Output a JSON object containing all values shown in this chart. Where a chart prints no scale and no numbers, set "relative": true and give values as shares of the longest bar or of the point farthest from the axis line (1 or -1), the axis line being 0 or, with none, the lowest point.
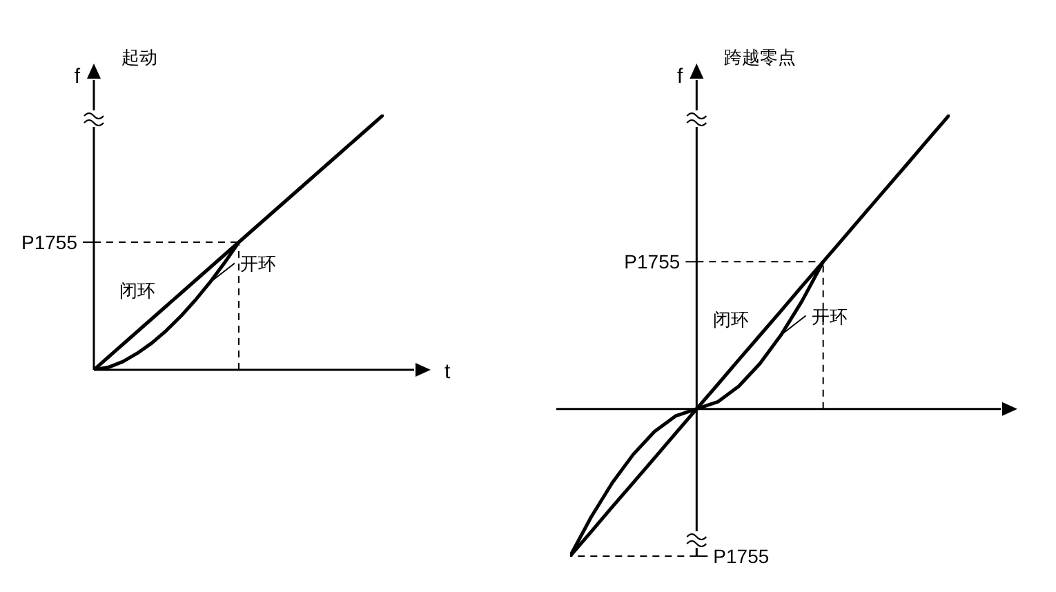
{
  "chart_data": [
    {
      "type": "line",
      "title": "起动",
      "xlabel": "t",
      "ylabel": "f",
      "relative": true,
      "marker": "none",
      "line_style": "solid",
      "categories": [
        null,
        null,
        null,
        null,
        null,
        null,
        null,
        null,
        null,
        null,
        null,
        null,
        null,
        null,
        null,
        null,
        null,
        null,
        null,
        null,
        null
      ],
      "series": [
        {
          "name": "闭环",
          "color": "#000000",
          "values": [
            0,
            0.05,
            0.1,
            0.15,
            0.2,
            0.25,
            0.3,
            0.35,
            0.4,
            0.45,
            0.5,
            0.55,
            0.6,
            0.65,
            0.7,
            0.75,
            0.8,
            0.85,
            0.9,
            0.95,
            1
          ]
        },
        {
          "name": "开环",
          "color": "#000000",
          "values": [
            0,
            0.01,
            0.032,
            0.065,
            0.105,
            0.154,
            0.21,
            0.273,
            0.342,
            0.418,
            0.5,
            null,
            null,
            null,
            null,
            null,
            null,
            null,
            null,
            null,
            null
          ]
        }
      ],
      "ref_lines": [
        {
          "axis": "y",
          "value": 0.5,
          "label": "P1755",
          "line_style": "dashed"
        }
      ]
    },
    {
      "type": "line",
      "title": "跨越零点",
      "ylabel": "f",
      "relative": true,
      "marker": "none",
      "line_style": "solid",
      "categories": [
        null,
        null,
        null,
        null,
        null,
        null,
        null,
        null,
        null,
        null,
        null,
        null,
        null,
        null,
        null,
        null,
        null,
        null,
        null
      ],
      "series": [
        {
          "name": "闭环",
          "color": "#000000",
          "values": [
            -0.5,
            -0.417,
            -0.333,
            -0.25,
            -0.167,
            -0.083,
            0,
            0.083,
            0.167,
            0.25,
            0.333,
            0.417,
            0.5,
            0.583,
            0.667,
            0.75,
            0.833,
            0.917,
            1
          ]
        },
        {
          "name": "开环",
          "color": "#000000",
          "values": [
            -0.5,
            -0.367,
            -0.251,
            -0.154,
            -0.077,
            -0.024,
            0,
            0.024,
            0.077,
            0.154,
            0.251,
            0.367,
            0.5,
            null,
            null,
            null,
            null,
            null,
            null
          ]
        }
      ],
      "ref_lines": [
        {
          "axis": "y",
          "value": 0.5,
          "label": "P1755",
          "line_style": "dashed"
        },
        {
          "axis": "y",
          "value": -0.5,
          "label": "P1755",
          "line_style": "dashed"
        }
      ]
    }
  ]
}
